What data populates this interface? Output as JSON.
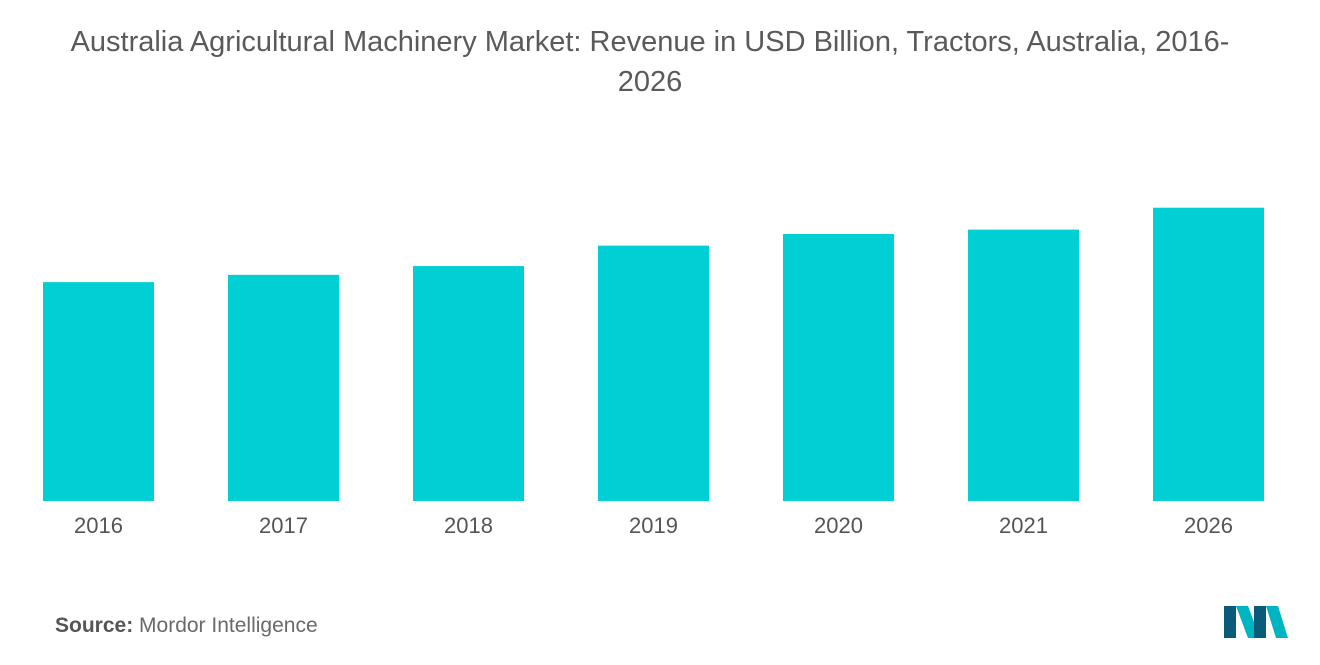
{
  "title": "Australia Agricultural Machinery Market: Revenue in USD Billion, Tractors, Australia, 2016-2026",
  "source_label": "Source:",
  "source_value": "Mordor Intelligence",
  "logo_text": "MI",
  "colors": {
    "bar": "#00CFD4",
    "text": "#555555"
  },
  "chart_data": {
    "type": "bar",
    "title": "Australia Agricultural Machinery Market: Revenue in USD Billion, Tractors, Australia, 2016-2026",
    "xlabel": "",
    "ylabel": "",
    "categories": [
      "2016",
      "2017",
      "2018",
      "2019",
      "2020",
      "2021",
      "2026"
    ],
    "values": [
      0.75,
      0.775,
      0.805,
      0.875,
      0.915,
      0.93,
      1.005
    ],
    "ylim": [
      0,
      1.1
    ],
    "grid": false,
    "legend": "none"
  }
}
